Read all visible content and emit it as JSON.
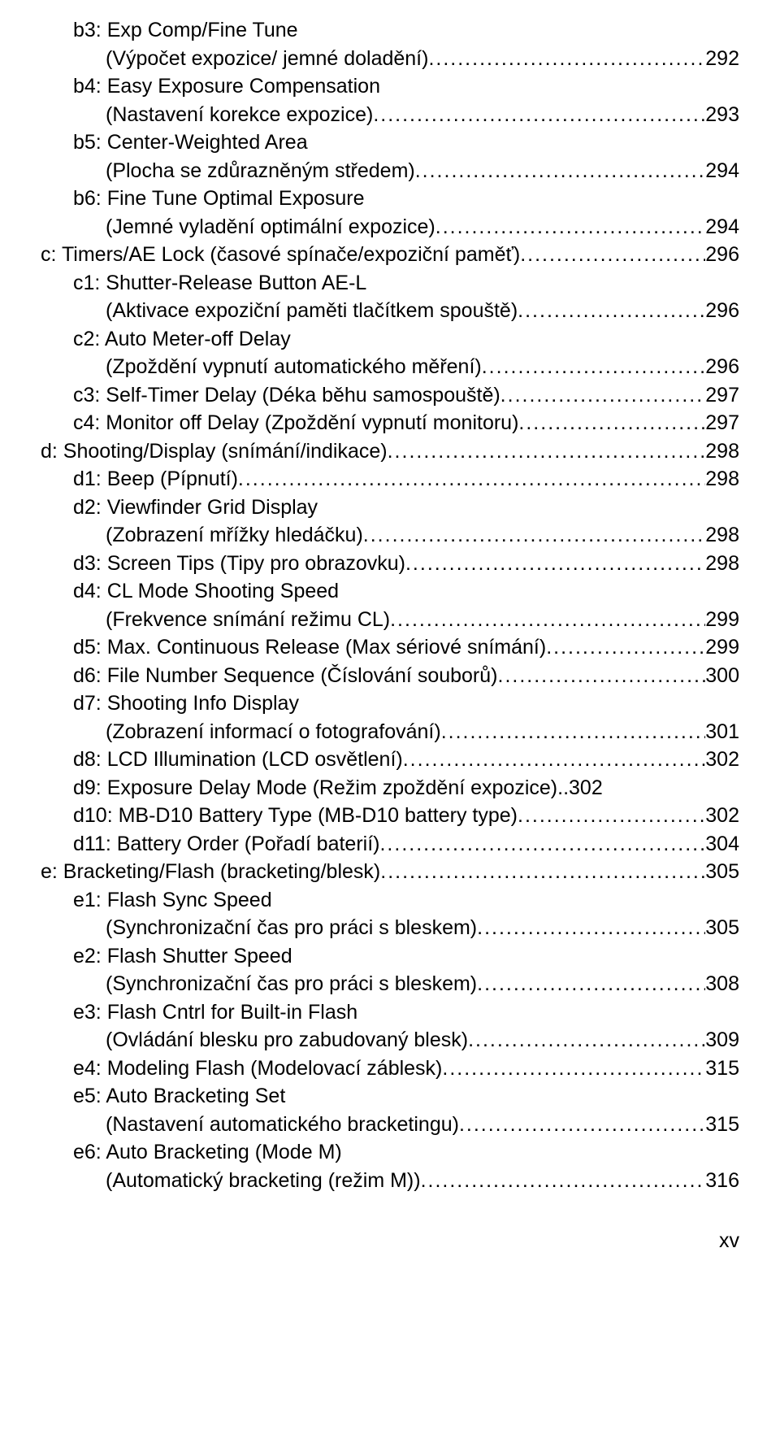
{
  "entries": [
    {
      "indent": 1,
      "lines": [
        "b3: Exp Comp/Fine Tune",
        "(Výpočet expozice/ jemné doladění)"
      ],
      "page": "292"
    },
    {
      "indent": 1,
      "lines": [
        "b4: Easy Exposure Compensation",
        "(Nastavení korekce expozice)"
      ],
      "page": "293"
    },
    {
      "indent": 1,
      "lines": [
        "b5: Center-Weighted Area",
        "(Plocha se zdůrazněným středem)"
      ],
      "page": "294"
    },
    {
      "indent": 1,
      "lines": [
        "b6: Fine Tune Optimal Exposure",
        "(Jemné vyladění optimální expozice)"
      ],
      "page": "294"
    },
    {
      "indent": 0,
      "lines": [
        "c: Timers/AE Lock (časové spínače/expoziční paměť)"
      ],
      "page": "296"
    },
    {
      "indent": 1,
      "lines": [
        "c1: Shutter-Release Button AE-L",
        "(Aktivace expoziční paměti tlačítkem spouště)"
      ],
      "page": "296"
    },
    {
      "indent": 1,
      "lines": [
        "c2: Auto Meter-off Delay",
        "(Zpoždění vypnutí automatického měření)"
      ],
      "page": "296"
    },
    {
      "indent": 1,
      "lines": [
        "c3: Self-Timer Delay (Déka běhu samospouště)"
      ],
      "page": "297"
    },
    {
      "indent": 1,
      "lines": [
        "c4: Monitor off Delay (Zpoždění vypnutí monitoru)"
      ],
      "page": "297"
    },
    {
      "indent": 0,
      "lines": [
        "d: Shooting/Display (snímání/indikace)"
      ],
      "page": "298"
    },
    {
      "indent": 1,
      "lines": [
        "d1: Beep (Pípnutí)"
      ],
      "page": "298"
    },
    {
      "indent": 1,
      "lines": [
        "d2: Viewfinder Grid Display",
        "(Zobrazení mřížky hledáčku)"
      ],
      "page": "298"
    },
    {
      "indent": 1,
      "lines": [
        "d3: Screen Tips (Tipy pro obrazovku)"
      ],
      "page": "298"
    },
    {
      "indent": 1,
      "lines": [
        "d4: CL Mode Shooting Speed",
        "(Frekvence snímání režimu CL)"
      ],
      "page": "299"
    },
    {
      "indent": 1,
      "lines": [
        "d5: Max. Continuous Release (Max sériové snímání)"
      ],
      "page": "299"
    },
    {
      "indent": 1,
      "lines": [
        "d6: File Number Sequence (Číslování souborů)"
      ],
      "page": "300"
    },
    {
      "indent": 1,
      "lines": [
        "d7: Shooting Info Display",
        "(Zobrazení informací o fotografování)"
      ],
      "page": "301"
    },
    {
      "indent": 1,
      "lines": [
        "d8: LCD Illumination (LCD osvětlení)"
      ],
      "page": "302"
    },
    {
      "indent": 1,
      "lines": [
        "d9: Exposure Delay Mode (Režim zpoždění expozice)"
      ],
      "page": "302",
      "tight": true
    },
    {
      "indent": 1,
      "lines": [
        "d10: MB-D10 Battery Type (MB-D10 battery type)"
      ],
      "page": "302"
    },
    {
      "indent": 1,
      "lines": [
        "d11: Battery Order (Pořadí baterií)"
      ],
      "page": "304"
    },
    {
      "indent": 0,
      "lines": [
        "e: Bracketing/Flash (bracketing/blesk)"
      ],
      "page": "305"
    },
    {
      "indent": 1,
      "lines": [
        "e1: Flash Sync Speed",
        "(Synchronizační čas pro práci s bleskem)"
      ],
      "page": "305"
    },
    {
      "indent": 1,
      "lines": [
        "e2: Flash Shutter Speed",
        "(Synchronizační čas pro práci s bleskem)"
      ],
      "page": "308"
    },
    {
      "indent": 1,
      "lines": [
        "e3: Flash Cntrl for Built-in Flash",
        "(Ovládání blesku pro zabudovaný blesk)"
      ],
      "page": "309"
    },
    {
      "indent": 1,
      "lines": [
        "e4: Modeling Flash (Modelovací záblesk)"
      ],
      "page": "315"
    },
    {
      "indent": 1,
      "lines": [
        "e5: Auto Bracketing Set",
        "(Nastavení automatického bracketingu)"
      ],
      "page": "315"
    },
    {
      "indent": 1,
      "lines": [
        "e6: Auto Bracketing (Mode M)",
        "(Automatický bracketing (režim M))"
      ],
      "page": "316"
    }
  ],
  "footer": "xv"
}
